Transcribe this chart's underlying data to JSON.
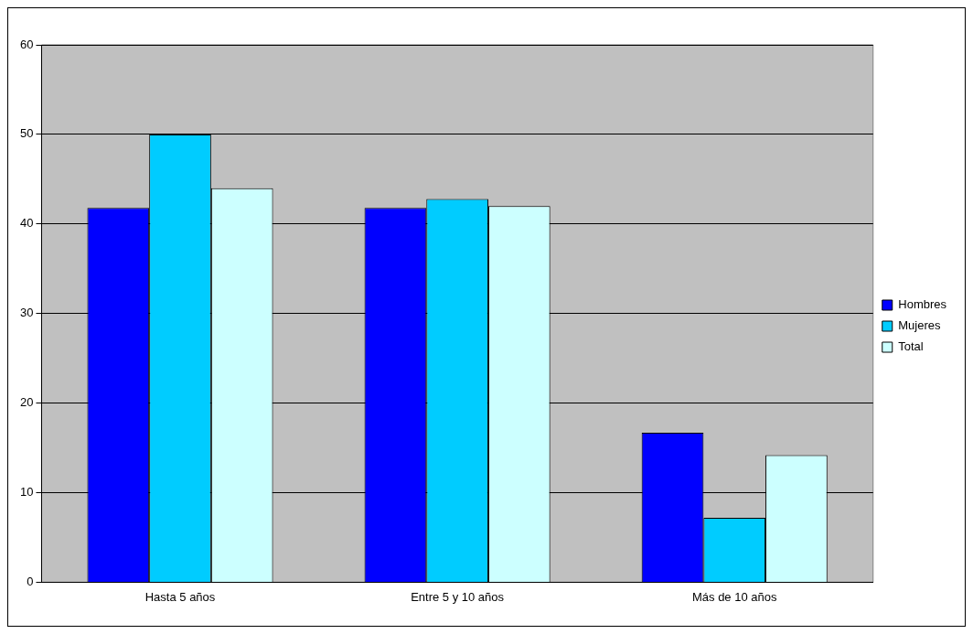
{
  "chart_data": {
    "type": "bar",
    "categories": [
      "Hasta 5 años",
      "Entre 5 y 10 años",
      "Más de 10 años"
    ],
    "series": [
      {
        "name": "Hombres",
        "color": "#0000ff",
        "values": [
          41.8,
          41.8,
          16.7
        ]
      },
      {
        "name": "Mujeres",
        "color": "#00ccff",
        "values": [
          50,
          42.8,
          7.2
        ]
      },
      {
        "name": "Total",
        "color": "#ccffff",
        "values": [
          44,
          42,
          14.2
        ]
      }
    ],
    "ylim": [
      0,
      60
    ],
    "yticks": [
      0,
      10,
      20,
      30,
      40,
      50,
      60
    ],
    "grid": "y",
    "legend": "right"
  }
}
